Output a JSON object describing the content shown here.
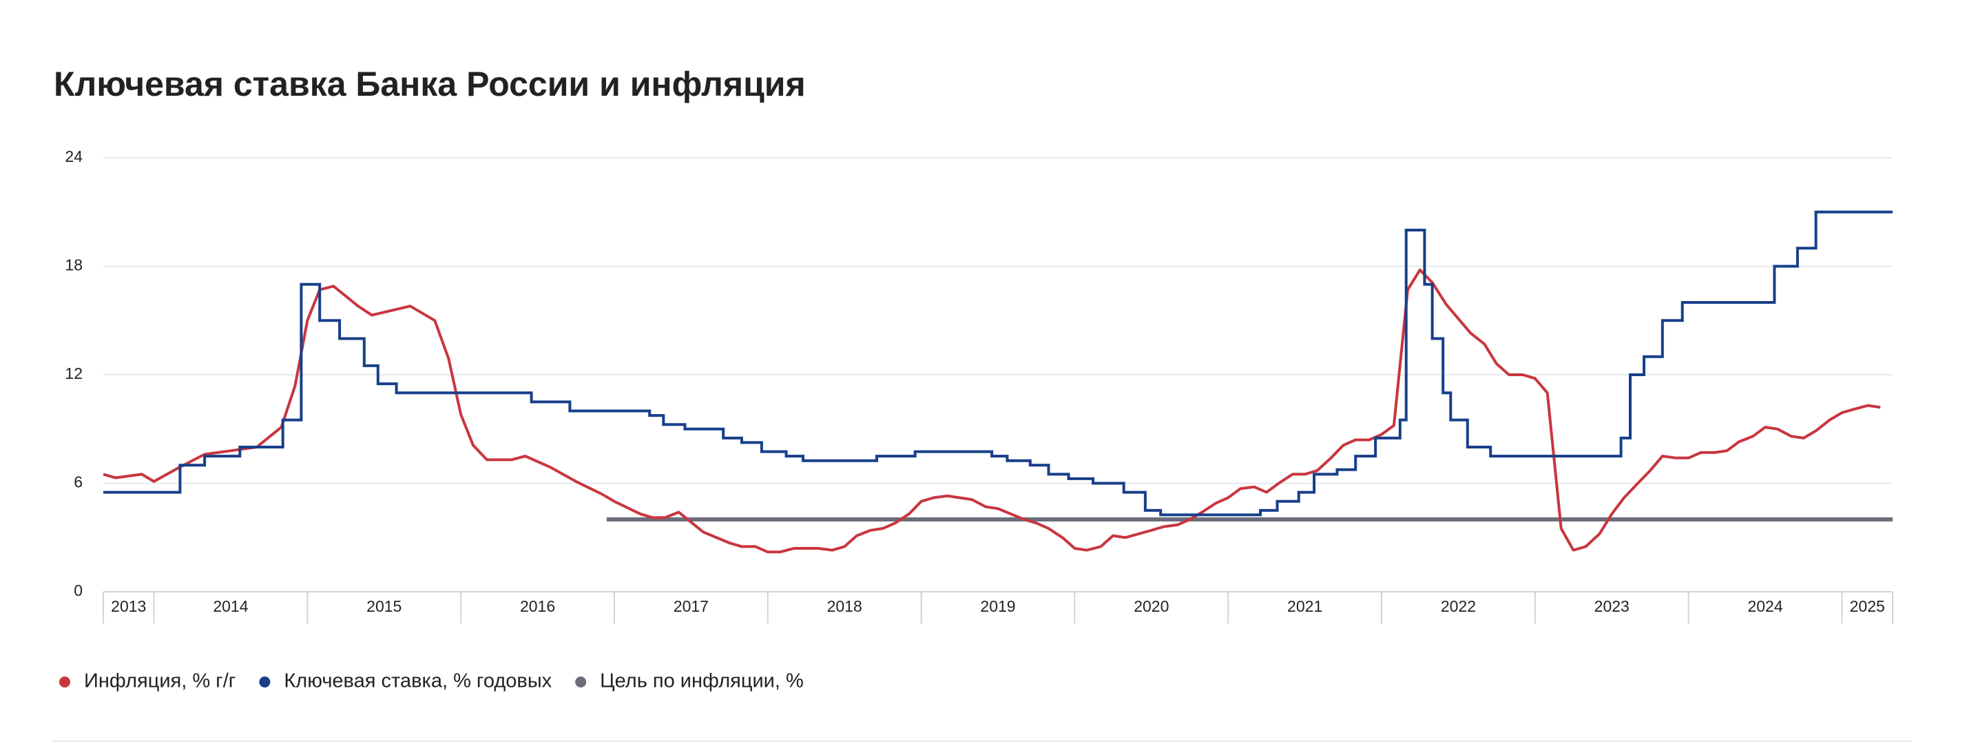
{
  "chart_data": {
    "type": "line",
    "title": "Ключевая ставка Банка России и инфляция",
    "xlim": [
      2013.67,
      2025.33
    ],
    "xticks": [
      2013,
      2014,
      2015,
      2016,
      2017,
      2018,
      2019,
      2020,
      2021,
      2022,
      2023,
      2024,
      2025
    ],
    "ylim": [
      0,
      24
    ],
    "yticks": [
      0,
      6,
      12,
      18,
      24
    ],
    "grid": true,
    "legend": "bottom-left",
    "series": [
      {
        "name": "Инфляция, % г/г",
        "color": "#c8363f",
        "step": false,
        "x": [
          2013.67,
          2013.75,
          2013.92,
          2014.0,
          2014.17,
          2014.33,
          2014.5,
          2014.67,
          2014.83,
          2014.92,
          2015.0,
          2015.08,
          2015.17,
          2015.33,
          2015.42,
          2015.67,
          2015.83,
          2015.92,
          2016.0,
          2016.08,
          2016.17,
          2016.33,
          2016.42,
          2016.58,
          2016.75,
          2016.92,
          2017.0,
          2017.17,
          2017.25,
          2017.33,
          2017.42,
          2017.58,
          2017.75,
          2017.83,
          2017.92,
          2018.0,
          2018.08,
          2018.17,
          2018.33,
          2018.42,
          2018.5,
          2018.58,
          2018.67,
          2018.75,
          2018.83,
          2018.92,
          2019.0,
          2019.08,
          2019.17,
          2019.33,
          2019.42,
          2019.5,
          2019.67,
          2019.75,
          2019.83,
          2019.92,
          2020.0,
          2020.08,
          2020.17,
          2020.25,
          2020.33,
          2020.5,
          2020.58,
          2020.67,
          2020.75,
          2020.83,
          2020.92,
          2021.0,
          2021.08,
          2021.17,
          2021.25,
          2021.33,
          2021.42,
          2021.5,
          2021.58,
          2021.67,
          2021.75,
          2021.83,
          2021.92,
          2022.0,
          2022.08,
          2022.17,
          2022.25,
          2022.33,
          2022.42,
          2022.5,
          2022.58,
          2022.67,
          2022.75,
          2022.83,
          2022.92,
          2023.0,
          2023.08,
          2023.17,
          2023.25,
          2023.33,
          2023.42,
          2023.5,
          2023.58,
          2023.67,
          2023.75,
          2023.83,
          2023.92,
          2024.0,
          2024.08,
          2024.17,
          2024.25,
          2024.33,
          2024.42,
          2024.5,
          2024.58,
          2024.67,
          2024.75,
          2024.83,
          2024.92,
          2025.0,
          2025.08,
          2025.17,
          2025.25
        ],
        "values": [
          6.5,
          6.3,
          6.5,
          6.1,
          6.9,
          7.6,
          7.8,
          8.0,
          9.1,
          11.4,
          15.0,
          16.7,
          16.9,
          15.8,
          15.3,
          15.8,
          15.0,
          12.9,
          9.8,
          8.1,
          7.3,
          7.3,
          7.5,
          6.9,
          6.1,
          5.4,
          5.0,
          4.3,
          4.1,
          4.1,
          4.4,
          3.3,
          2.7,
          2.5,
          2.5,
          2.2,
          2.2,
          2.4,
          2.4,
          2.3,
          2.5,
          3.1,
          3.4,
          3.5,
          3.8,
          4.3,
          5.0,
          5.2,
          5.3,
          5.1,
          4.7,
          4.6,
          4.0,
          3.8,
          3.5,
          3.0,
          2.4,
          2.3,
          2.5,
          3.1,
          3.0,
          3.4,
          3.6,
          3.7,
          4.0,
          4.4,
          4.9,
          5.2,
          5.7,
          5.8,
          5.5,
          6.0,
          6.5,
          6.5,
          6.7,
          7.4,
          8.1,
          8.4,
          8.4,
          8.7,
          9.2,
          16.7,
          17.8,
          17.1,
          15.9,
          15.1,
          14.3,
          13.7,
          12.6,
          12.0,
          12.0,
          11.8,
          11.0,
          3.5,
          2.3,
          2.5,
          3.2,
          4.3,
          5.2,
          6.0,
          6.7,
          7.5,
          7.4,
          7.4,
          7.7,
          7.7,
          7.8,
          8.3,
          8.6,
          9.1,
          9.0,
          8.6,
          8.5,
          8.9,
          9.5,
          9.9,
          10.1,
          10.3,
          10.2
        ]
      },
      {
        "name": "Ключевая ставка, % годовых",
        "color": "#173f8a",
        "step": true,
        "x": [
          2013.67,
          2014.17,
          2014.33,
          2014.56,
          2014.84,
          2014.96,
          2015.08,
          2015.21,
          2015.37,
          2015.46,
          2015.58,
          2016.46,
          2016.71,
          2017.23,
          2017.32,
          2017.46,
          2017.71,
          2017.83,
          2017.96,
          2018.12,
          2018.23,
          2018.71,
          2018.96,
          2019.46,
          2019.56,
          2019.71,
          2019.83,
          2019.96,
          2020.12,
          2020.32,
          2020.46,
          2020.56,
          2021.21,
          2021.32,
          2021.46,
          2021.56,
          2021.71,
          2021.83,
          2021.96,
          2022.12,
          2022.16,
          2022.28,
          2022.33,
          2022.4,
          2022.45,
          2022.56,
          2022.71,
          2023.56,
          2023.62,
          2023.71,
          2023.83,
          2023.96,
          2024.56,
          2024.71,
          2024.83,
          2025.33
        ],
        "values": [
          5.5,
          7.0,
          7.5,
          8.0,
          9.5,
          17,
          15,
          14,
          12.5,
          11.5,
          11,
          10.5,
          10,
          9.75,
          9.25,
          9,
          8.5,
          8.25,
          7.75,
          7.5,
          7.25,
          7.5,
          7.75,
          7.5,
          7.25,
          7,
          6.5,
          6.25,
          6,
          5.5,
          4.5,
          4.25,
          4.5,
          5,
          5.5,
          6.5,
          6.75,
          7.5,
          8.5,
          9.5,
          20,
          17,
          14,
          11,
          9.5,
          8,
          7.5,
          8.5,
          12,
          13,
          15,
          16,
          18,
          19,
          21,
          21
        ]
      },
      {
        "name": "Цель по инфляции, %",
        "color": "#6b6e7a",
        "step": false,
        "x": [
          2016.95,
          2025.33
        ],
        "values": [
          4,
          4
        ]
      }
    ]
  }
}
